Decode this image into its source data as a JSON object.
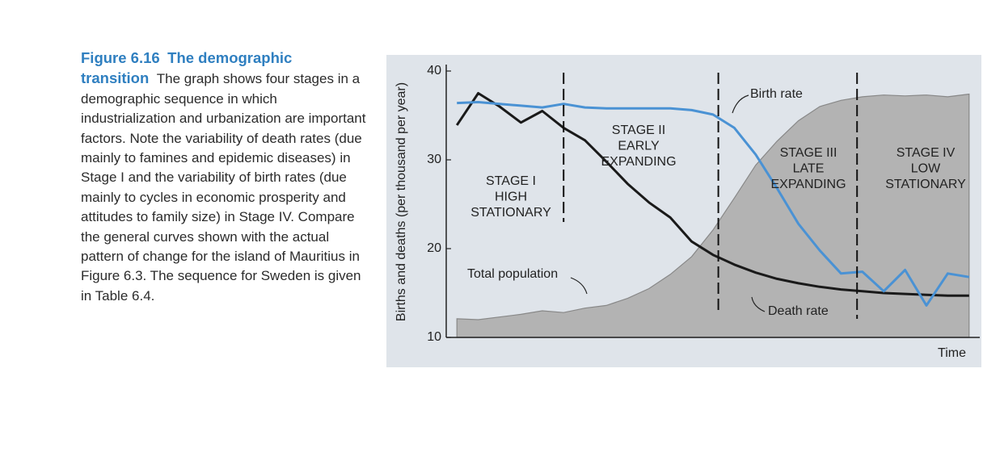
{
  "caption": {
    "label": "Figure 6.16",
    "title": "The demographic transition",
    "text": "The graph shows four stages in a demographic sequence in which industrialization and urbanization are important factors. Note the variability of death rates (due mainly to famines and epidemic diseases) in Stage I and the variability of birth rates (due mainly to cycles in economic prosperity and attitudes to family size) in Stage IV. Compare the general curves shown with the actual pattern of change for the island of Mauritius in Figure 6.3. The sequence for Sweden is given in Table 6.4."
  },
  "chart_data": {
    "type": "line",
    "ylabel": "Births and deaths (per thousand per year)",
    "xlabel": "Time",
    "ylim": [
      10,
      40
    ],
    "yticks": [
      10,
      20,
      30,
      40
    ],
    "xlim": [
      0,
      100
    ],
    "x": [
      2,
      6,
      10,
      14,
      18,
      22,
      26,
      30,
      34,
      38,
      42,
      46,
      50,
      54,
      58,
      62,
      66,
      70,
      74,
      78,
      82,
      86,
      90,
      94,
      98
    ],
    "series": [
      {
        "name": "Total population",
        "color": "#b3b3b3",
        "style": "area",
        "values": [
          12.1,
          12.0,
          12.3,
          12.6,
          13.0,
          12.8,
          13.3,
          13.6,
          14.4,
          15.5,
          17.1,
          19.1,
          22.1,
          25.7,
          29.4,
          32.1,
          34.4,
          36.0,
          36.7,
          37.1,
          37.3,
          37.2,
          37.3,
          37.1,
          37.4
        ]
      },
      {
        "name": "Death rate",
        "color": "#1a1a1a",
        "style": "line",
        "values": [
          33.9,
          37.5,
          36.0,
          34.2,
          35.5,
          33.6,
          32.2,
          29.8,
          27.3,
          25.2,
          23.5,
          20.8,
          19.3,
          18.2,
          17.3,
          16.6,
          16.1,
          15.7,
          15.4,
          15.2,
          15.0,
          14.9,
          14.8,
          14.7,
          14.7
        ]
      },
      {
        "name": "Birth rate",
        "color": "#4a92d4",
        "style": "line",
        "values": [
          36.4,
          36.5,
          36.3,
          36.1,
          35.9,
          36.3,
          35.9,
          35.8,
          35.8,
          35.8,
          35.8,
          35.6,
          35.1,
          33.6,
          30.6,
          26.8,
          22.8,
          19.8,
          17.2,
          17.4,
          15.2,
          17.6,
          13.6,
          17.2,
          16.8
        ]
      }
    ],
    "stage_boundaries": [
      22,
      51,
      77
    ],
    "stages": [
      {
        "lines": [
          "STAGE I",
          "HIGH",
          "STATIONARY"
        ]
      },
      {
        "lines": [
          "STAGE II",
          "EARLY",
          "EXPANDING"
        ]
      },
      {
        "lines": [
          "STAGE III",
          "LATE",
          "EXPANDING"
        ]
      },
      {
        "lines": [
          "STAGE IV",
          "LOW",
          "STATIONARY"
        ]
      }
    ]
  }
}
